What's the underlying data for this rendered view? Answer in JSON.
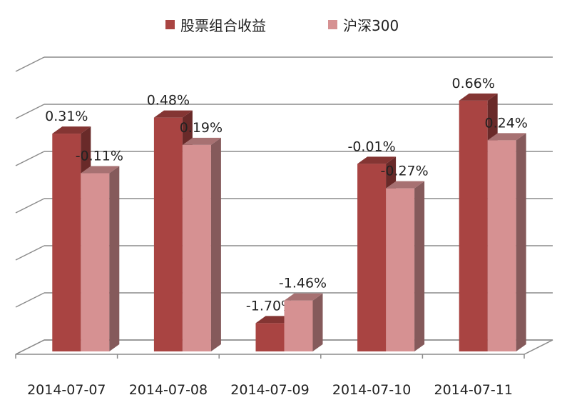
{
  "chart_data": {
    "type": "bar",
    "categories": [
      "2014-07-07",
      "2014-07-08",
      "2014-07-09",
      "2014-07-10",
      "2014-07-11"
    ],
    "series": [
      {
        "name": "股票组合收益",
        "values": [
          0.31,
          0.48,
          -1.7,
          -0.01,
          0.66
        ],
        "labels": [
          "0.31%",
          "0.48%",
          "-1.70%",
          "-0.01%",
          "0.66%"
        ],
        "color": "#a94442"
      },
      {
        "name": "沪深300",
        "values": [
          -0.11,
          0.19,
          -1.46,
          -0.27,
          0.24
        ],
        "labels": [
          "-0.11%",
          "0.19%",
          "-1.46%",
          "-0.27%",
          "0.24%"
        ],
        "color": "#d69192"
      }
    ],
    "title": "",
    "xlabel": "",
    "ylabel": "",
    "ylim": [
      -2.0,
      1.0
    ],
    "grid": true,
    "legend_position": "top-center",
    "three_d": true
  }
}
